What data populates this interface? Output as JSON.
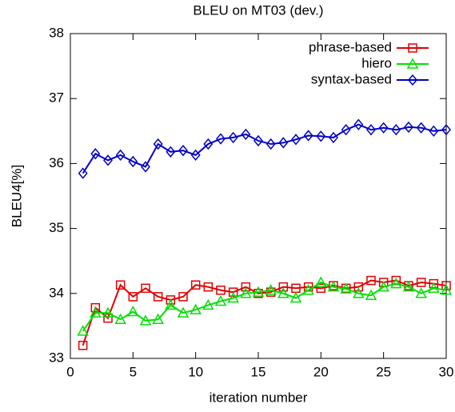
{
  "chart_data": {
    "type": "line",
    "title": "BLEU on MT03 (dev.)",
    "x_label": "iteration number",
    "y_label": "BLEU4[%]",
    "x": [
      1,
      2,
      3,
      4,
      5,
      6,
      7,
      8,
      9,
      10,
      11,
      12,
      13,
      14,
      15,
      16,
      17,
      18,
      19,
      20,
      21,
      22,
      23,
      24,
      25,
      26,
      27,
      28,
      29,
      30
    ],
    "series": [
      {
        "name": "phrase-based",
        "color": "#e00000",
        "marker": "square",
        "values": [
          33.2,
          33.78,
          33.62,
          34.13,
          33.95,
          34.08,
          33.95,
          33.9,
          33.95,
          34.13,
          34.1,
          34.05,
          34.02,
          34.1,
          34.0,
          34.02,
          34.1,
          34.08,
          34.1,
          34.08,
          34.12,
          34.08,
          34.1,
          34.2,
          34.17,
          34.2,
          34.12,
          34.17,
          34.15,
          34.12
        ]
      },
      {
        "name": "hiero",
        "color": "#00e000",
        "marker": "triangle",
        "values": [
          33.42,
          33.7,
          33.7,
          33.6,
          33.72,
          33.58,
          33.6,
          33.82,
          33.7,
          33.75,
          33.82,
          33.88,
          33.93,
          34.0,
          34.02,
          34.05,
          34.0,
          33.93,
          34.05,
          34.17,
          34.1,
          34.07,
          34.0,
          33.97,
          34.1,
          34.15,
          34.1,
          34.0,
          34.08,
          34.05
        ]
      },
      {
        "name": "syntax-based",
        "color": "#0000c8",
        "marker": "diamond",
        "values": [
          35.85,
          36.15,
          36.05,
          36.13,
          36.03,
          35.95,
          36.3,
          36.18,
          36.2,
          36.13,
          36.3,
          36.38,
          36.4,
          36.45,
          36.35,
          36.3,
          36.32,
          36.37,
          36.43,
          36.42,
          36.4,
          36.52,
          36.6,
          36.52,
          36.55,
          36.52,
          36.56,
          36.55,
          36.5,
          36.52
        ]
      }
    ],
    "xlim": [
      0,
      30
    ],
    "ylim": [
      33,
      38
    ],
    "xticks": [
      0,
      5,
      10,
      15,
      20,
      25,
      30
    ],
    "yticks": [
      33,
      34,
      35,
      36,
      37,
      38
    ],
    "legend": "top-right"
  }
}
